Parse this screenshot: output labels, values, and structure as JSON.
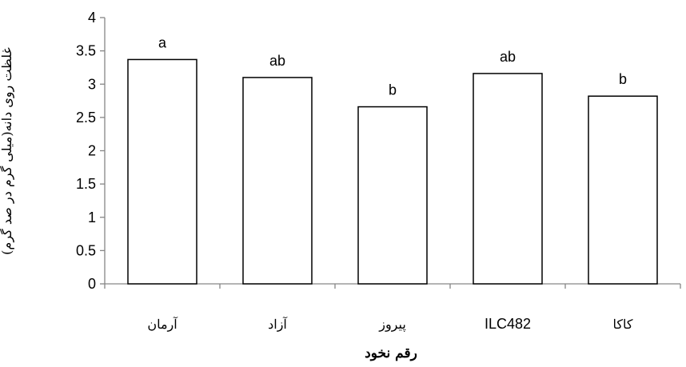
{
  "chart_data": {
    "type": "bar",
    "categories": [
      "آرمان",
      "آزاد",
      "پیروز",
      "ILC482",
      "کاکا"
    ],
    "values": [
      3.37,
      3.1,
      2.66,
      3.16,
      2.82
    ],
    "data_labels": [
      "a",
      "ab",
      "b",
      "ab",
      "b"
    ],
    "title": "",
    "xlabel": "رقم نخود",
    "ylabel": "غلظت روی دانه(میلی گرم در صد گرم)",
    "ylim": [
      0,
      4
    ],
    "yticks": [
      "0",
      "0.5",
      "1",
      "1.5",
      "2",
      "2.5",
      "3",
      "3.5",
      "4"
    ],
    "grid": false,
    "bar_fill": "#ffffff",
    "bar_stroke": "#000000"
  }
}
